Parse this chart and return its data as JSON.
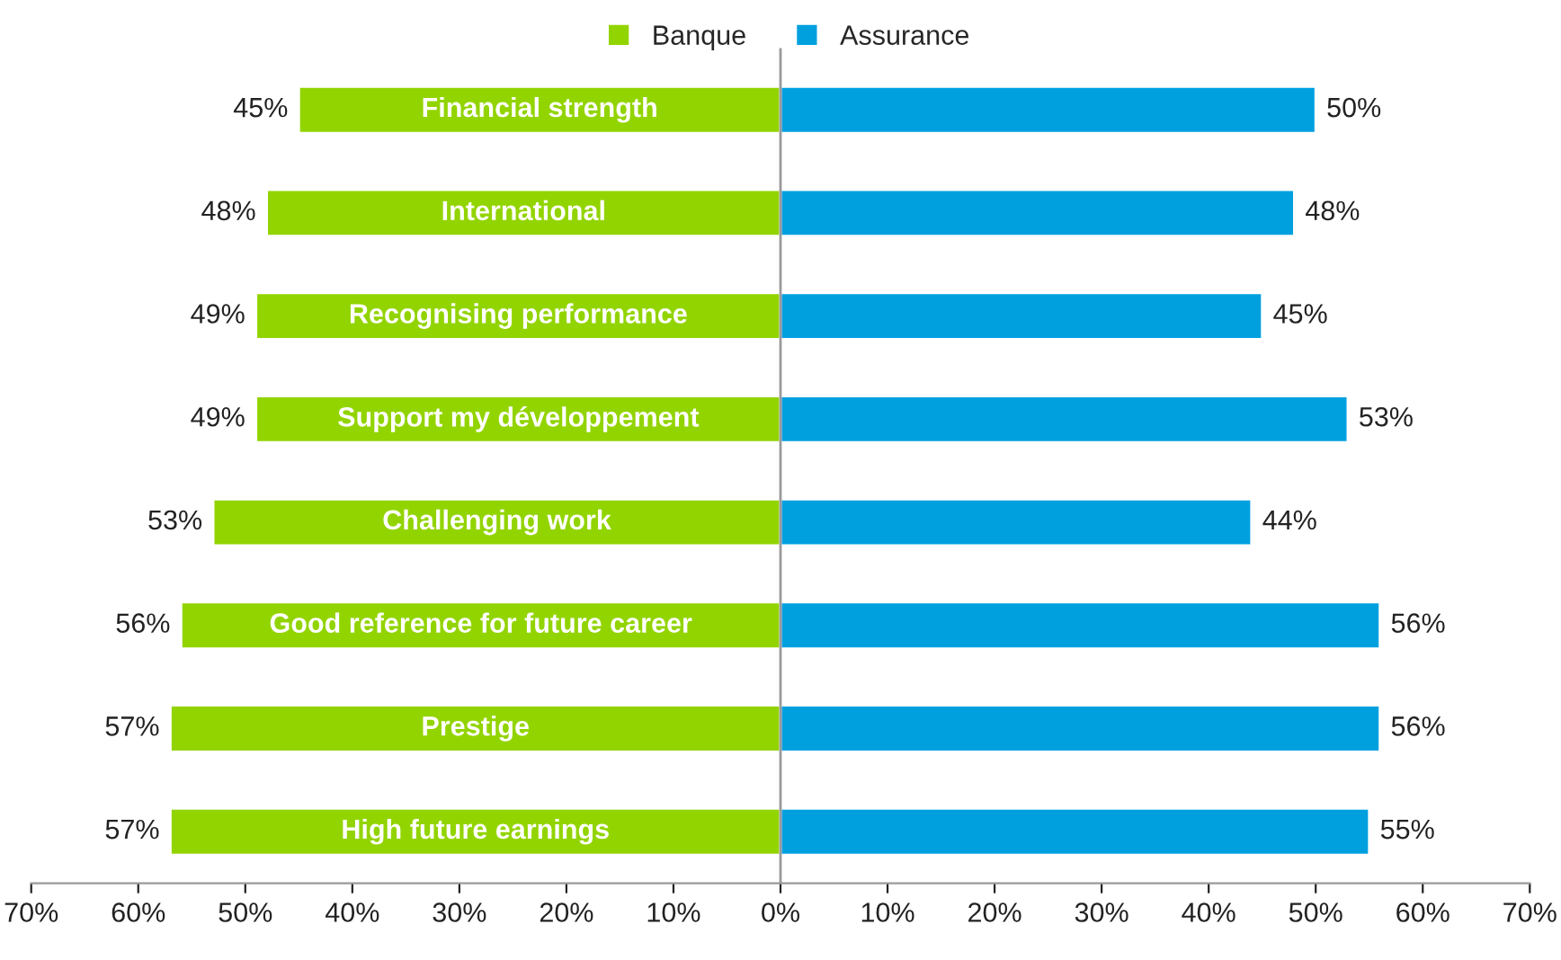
{
  "chart_data": {
    "type": "bar",
    "orientation": "horizontal",
    "categories": [
      "Financial strength",
      "International",
      "Recognising performance",
      "Support my développement",
      "Challenging work",
      "Good reference for future career",
      "Prestige",
      "High future earnings"
    ],
    "series": [
      {
        "name": "Banque",
        "color": "#92d400",
        "values": [
          45,
          48,
          49,
          49,
          53,
          56,
          57,
          57
        ],
        "base": [
          -45,
          -48,
          -49,
          -49,
          -53,
          -56,
          -57,
          -57
        ],
        "value_labels": [
          "45%",
          "48%",
          "49%",
          "49%",
          "53%",
          "56%",
          "57%",
          "57%"
        ]
      },
      {
        "name": "Assurance",
        "color": "#00a0df",
        "values": [
          50,
          48,
          45,
          53,
          44,
          56,
          56,
          55
        ],
        "value_labels": [
          "50%",
          "48%",
          "45%",
          "53%",
          "44%",
          "56%",
          "56%",
          "55%"
        ]
      }
    ],
    "xlim": [
      -70,
      70
    ],
    "xticks": [
      {
        "value": -70,
        "label": "70%"
      },
      {
        "value": -60,
        "label": "60%"
      },
      {
        "value": -50,
        "label": "50%"
      },
      {
        "value": -40,
        "label": "40%"
      },
      {
        "value": -30,
        "label": "30%"
      },
      {
        "value": -20,
        "label": "20%"
      },
      {
        "value": -10,
        "label": "10%"
      },
      {
        "value": 0,
        "label": "0%"
      },
      {
        "value": 10,
        "label": "10%"
      },
      {
        "value": 20,
        "label": "20%"
      },
      {
        "value": 30,
        "label": "30%"
      },
      {
        "value": 40,
        "label": "40%"
      },
      {
        "value": 50,
        "label": "50%"
      },
      {
        "value": 60,
        "label": "60%"
      },
      {
        "value": 70,
        "label": "70%"
      }
    ],
    "ref_lines": [
      {
        "axis": "x",
        "value": 0,
        "color": "#999999"
      }
    ],
    "legend": "top"
  }
}
